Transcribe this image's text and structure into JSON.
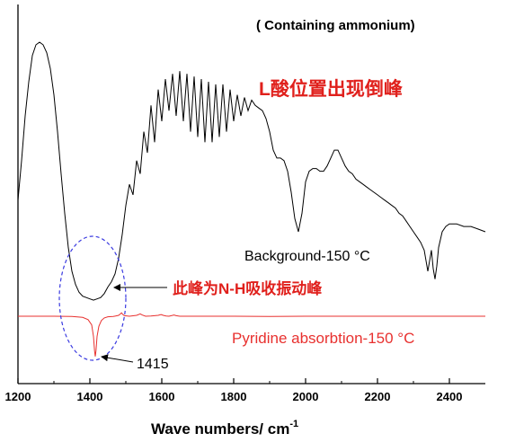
{
  "chart_data": {
    "type": "line",
    "xlabel_main": "Wave numbers/ cm",
    "xlabel_sup": "-1",
    "xlim": [
      1200,
      2500
    ],
    "x_ticks": [
      "1200",
      "1400",
      "1600",
      "1800",
      "2000",
      "2200",
      "2400"
    ],
    "x_tick_values": [
      1200,
      1400,
      1600,
      1800,
      2000,
      2200,
      2400
    ],
    "y_axis_printed": false,
    "annotations": {
      "top_note": "( Containing ammonium)",
      "red_title": "L酸位置出现倒峰",
      "background_label": "Background-150 °C",
      "pyridine_label": "Pyridine absorbtion-150 °C",
      "nh_note": "此峰为N-H吸收振动峰",
      "peak_label": "1415"
    },
    "colors": {
      "background_series": "#000000",
      "pyridine_series": "#e8312f",
      "red_text": "#e0201c",
      "ellipse": "#3a3ae0"
    },
    "series": [
      {
        "key": "background",
        "values": [
          [
            1200,
            0.4
          ],
          [
            1210,
            0.55
          ],
          [
            1220,
            0.72
          ],
          [
            1230,
            0.85
          ],
          [
            1240,
            0.95
          ],
          [
            1250,
            0.99
          ],
          [
            1260,
            1.0
          ],
          [
            1270,
            0.99
          ],
          [
            1280,
            0.96
          ],
          [
            1290,
            0.9
          ],
          [
            1300,
            0.8
          ],
          [
            1310,
            0.66
          ],
          [
            1320,
            0.5
          ],
          [
            1330,
            0.35
          ],
          [
            1340,
            0.22
          ],
          [
            1350,
            0.13
          ],
          [
            1360,
            0.08
          ],
          [
            1370,
            0.05
          ],
          [
            1380,
            0.035
          ],
          [
            1390,
            0.03
          ],
          [
            1400,
            0.025
          ],
          [
            1410,
            0.02
          ],
          [
            1420,
            0.025
          ],
          [
            1430,
            0.03
          ],
          [
            1440,
            0.045
          ],
          [
            1450,
            0.07
          ],
          [
            1460,
            0.09
          ],
          [
            1470,
            0.12
          ],
          [
            1480,
            0.18
          ],
          [
            1490,
            0.27
          ],
          [
            1500,
            0.38
          ],
          [
            1510,
            0.46
          ],
          [
            1520,
            0.42
          ],
          [
            1530,
            0.55
          ],
          [
            1540,
            0.5
          ],
          [
            1550,
            0.66
          ],
          [
            1560,
            0.58
          ],
          [
            1570,
            0.76
          ],
          [
            1580,
            0.62
          ],
          [
            1590,
            0.82
          ],
          [
            1600,
            0.7
          ],
          [
            1610,
            0.86
          ],
          [
            1620,
            0.74
          ],
          [
            1630,
            0.88
          ],
          [
            1640,
            0.72
          ],
          [
            1650,
            0.89
          ],
          [
            1660,
            0.7
          ],
          [
            1670,
            0.88
          ],
          [
            1680,
            0.66
          ],
          [
            1690,
            0.87
          ],
          [
            1700,
            0.64
          ],
          [
            1710,
            0.86
          ],
          [
            1720,
            0.62
          ],
          [
            1730,
            0.85
          ],
          [
            1740,
            0.62
          ],
          [
            1750,
            0.84
          ],
          [
            1760,
            0.64
          ],
          [
            1770,
            0.84
          ],
          [
            1780,
            0.66
          ],
          [
            1790,
            0.82
          ],
          [
            1800,
            0.7
          ],
          [
            1810,
            0.8
          ],
          [
            1820,
            0.72
          ],
          [
            1830,
            0.79
          ],
          [
            1840,
            0.74
          ],
          [
            1850,
            0.78
          ],
          [
            1860,
            0.76
          ],
          [
            1870,
            0.75
          ],
          [
            1880,
            0.74
          ],
          [
            1890,
            0.71
          ],
          [
            1900,
            0.66
          ],
          [
            1910,
            0.59
          ],
          [
            1920,
            0.56
          ],
          [
            1930,
            0.56
          ],
          [
            1940,
            0.55
          ],
          [
            1950,
            0.51
          ],
          [
            1960,
            0.43
          ],
          [
            1970,
            0.33
          ],
          [
            1980,
            0.28
          ],
          [
            1990,
            0.35
          ],
          [
            2000,
            0.47
          ],
          [
            2010,
            0.51
          ],
          [
            2020,
            0.52
          ],
          [
            2030,
            0.52
          ],
          [
            2040,
            0.51
          ],
          [
            2050,
            0.51
          ],
          [
            2060,
            0.53
          ],
          [
            2070,
            0.56
          ],
          [
            2080,
            0.59
          ],
          [
            2090,
            0.59
          ],
          [
            2100,
            0.56
          ],
          [
            2110,
            0.53
          ],
          [
            2120,
            0.51
          ],
          [
            2130,
            0.5
          ],
          [
            2140,
            0.48
          ],
          [
            2150,
            0.47
          ],
          [
            2160,
            0.46
          ],
          [
            2170,
            0.45
          ],
          [
            2180,
            0.44
          ],
          [
            2190,
            0.43
          ],
          [
            2200,
            0.42
          ],
          [
            2210,
            0.41
          ],
          [
            2220,
            0.4
          ],
          [
            2230,
            0.39
          ],
          [
            2240,
            0.38
          ],
          [
            2250,
            0.37
          ],
          [
            2260,
            0.35
          ],
          [
            2270,
            0.34
          ],
          [
            2280,
            0.32
          ],
          [
            2290,
            0.3
          ],
          [
            2300,
            0.28
          ],
          [
            2310,
            0.26
          ],
          [
            2320,
            0.24
          ],
          [
            2330,
            0.21
          ],
          [
            2335,
            0.17
          ],
          [
            2340,
            0.13
          ],
          [
            2345,
            0.17
          ],
          [
            2350,
            0.21
          ],
          [
            2355,
            0.14
          ],
          [
            2360,
            0.1
          ],
          [
            2365,
            0.15
          ],
          [
            2370,
            0.22
          ],
          [
            2380,
            0.28
          ],
          [
            2390,
            0.3
          ],
          [
            2400,
            0.31
          ],
          [
            2420,
            0.31
          ],
          [
            2440,
            0.3
          ],
          [
            2460,
            0.3
          ],
          [
            2480,
            0.29
          ],
          [
            2500,
            0.28
          ]
        ]
      },
      {
        "key": "pyridine",
        "values": [
          [
            1200,
            0.0
          ],
          [
            1260,
            0.0
          ],
          [
            1300,
            0.0
          ],
          [
            1350,
            -0.001
          ],
          [
            1380,
            -0.004
          ],
          [
            1395,
            -0.012
          ],
          [
            1405,
            -0.03
          ],
          [
            1410,
            -0.07
          ],
          [
            1413,
            -0.12
          ],
          [
            1415,
            -0.14
          ],
          [
            1417,
            -0.12
          ],
          [
            1420,
            -0.07
          ],
          [
            1425,
            -0.035
          ],
          [
            1432,
            -0.015
          ],
          [
            1440,
            -0.006
          ],
          [
            1450,
            -0.002
          ],
          [
            1465,
            -0.001
          ],
          [
            1480,
            0.003
          ],
          [
            1485,
            0.008
          ],
          [
            1488,
            0.012
          ],
          [
            1491,
            0.007
          ],
          [
            1496,
            0.002
          ],
          [
            1510,
            0.0
          ],
          [
            1530,
            0.003
          ],
          [
            1540,
            0.008
          ],
          [
            1546,
            0.004
          ],
          [
            1555,
            0.0
          ],
          [
            1570,
            0.001
          ],
          [
            1590,
            0.003
          ],
          [
            1598,
            0.006
          ],
          [
            1604,
            0.003
          ],
          [
            1612,
            0.001
          ],
          [
            1620,
            0.0
          ],
          [
            1634,
            0.004
          ],
          [
            1640,
            0.002
          ],
          [
            1650,
            0.0
          ],
          [
            1700,
            0.0
          ],
          [
            1800,
            0.0
          ],
          [
            1900,
            -0.001
          ],
          [
            2000,
            0.0
          ],
          [
            2100,
            0.0
          ],
          [
            2200,
            0.0
          ],
          [
            2300,
            0.0
          ],
          [
            2400,
            0.0
          ],
          [
            2500,
            0.0
          ]
        ]
      }
    ]
  }
}
